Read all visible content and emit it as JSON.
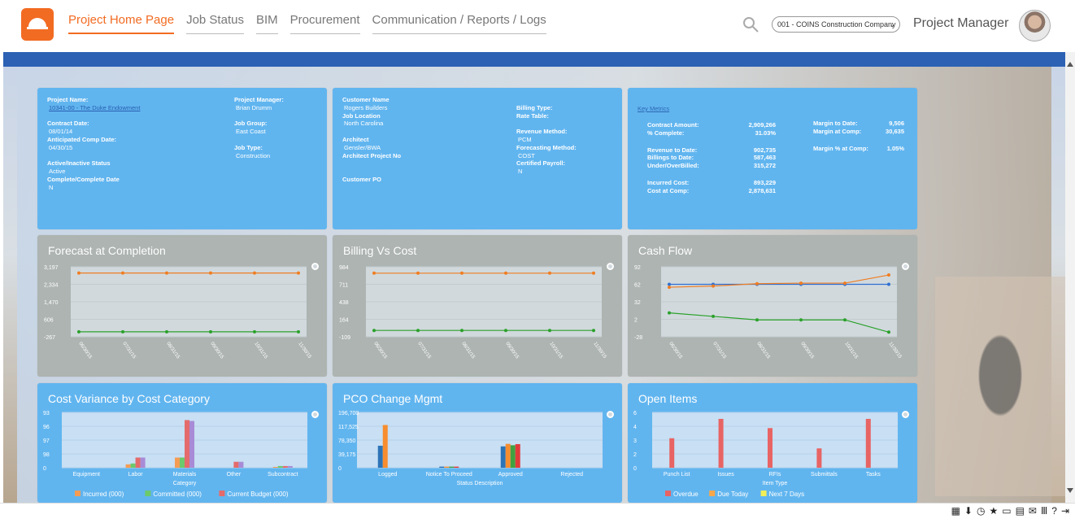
{
  "nav": {
    "items": [
      "Project Home Page",
      "Job Status",
      "BIM",
      "Procurement",
      "Communication / Reports / Logs"
    ],
    "active": "Project Home Page"
  },
  "header": {
    "company": "001 - COINS Construction Company",
    "role": "Project Manager",
    "search_icon": "search-icon",
    "logo_icon": "hardhat-icon",
    "avatar": "avatar"
  },
  "project": {
    "project_name_label": "Project Name:",
    "project_name": "10341-00 - The Duke Endowment",
    "contract_date_label": "Contract Date:",
    "contract_date": "08/01/14",
    "anticipated_label": "Anticipated Comp Date:",
    "anticipated_date": "04/30/15",
    "status_label": "Active/Inactive Status",
    "status": "Active",
    "complete_label": "Complete/Complete Date",
    "complete": "N",
    "pm_label": "Project Manager:",
    "pm": "Brian Drumm",
    "job_group_label": "Job Group:",
    "job_group": "East Coast",
    "job_type_label": "Job Type:",
    "job_type": "Construction"
  },
  "customer": {
    "customer_label": "Customer Name",
    "customer": "Rogers Builders",
    "location_label": "Job Location",
    "location": "North Carolina",
    "architect_label": "Architect",
    "architect": "Gensler/BWA",
    "architect_project_label": "Architect Project No",
    "customer_po_label": "Customer PO",
    "billing_type_label": "Billing Type:",
    "rate_table_label": "Rate Table:",
    "revenue_label": "Revenue Method:",
    "revenue": "PCM",
    "forecasting_label": "Forecasting Method:",
    "forecasting": "COST",
    "certified_label": "Certified Payroll:",
    "certified": "N"
  },
  "metrics": {
    "title": "Key Metrics",
    "left": [
      {
        "label": "Contract Amount:",
        "value": "2,909,266"
      },
      {
        "label": "% Complete:",
        "value": "31.03%"
      },
      {
        "label": "Revenue to Date:",
        "value": "902,735"
      },
      {
        "label": "Billings to Date:",
        "value": "587,463"
      },
      {
        "label": "Under/OverBilled:",
        "value": "315,272"
      },
      {
        "label": "Incurred Cost:",
        "value": "893,229"
      },
      {
        "label": "Cost at Comp:",
        "value": "2,878,631"
      }
    ],
    "right": [
      {
        "label": "Margin to Date:",
        "value": "9,506"
      },
      {
        "label": "Margin at Comp:",
        "value": "30,635"
      },
      {
        "label": "Margin % at Comp:",
        "value": "1.05%"
      }
    ]
  },
  "chart_data": [
    {
      "type": "line",
      "title": "Forecast at Completion",
      "x": [
        "06/30/15",
        "07/31/15",
        "08/31/15",
        "09/30/15",
        "10/31/15",
        "11/30/15"
      ],
      "ylim": [
        -267,
        3197
      ],
      "yticks": [
        "3,197",
        "2,334",
        "1,470",
        "606",
        "-267"
      ],
      "series": [
        {
          "values": [
            2890,
            2890,
            2890,
            2890,
            2890,
            2890
          ],
          "color": "#f07d22"
        },
        {
          "values": [
            -20,
            -20,
            -20,
            -20,
            -20,
            -20
          ],
          "color": "#2aa12a"
        }
      ]
    },
    {
      "type": "line",
      "title": "Billing Vs Cost",
      "x": [
        "06/30/15",
        "07/31/15",
        "08/31/15",
        "09/30/15",
        "10/31/15",
        "11/30/15"
      ],
      "ylim": [
        -109,
        984
      ],
      "yticks": [
        "984",
        "711",
        "438",
        "164",
        "-109"
      ],
      "series": [
        {
          "values": [
            885,
            885,
            885,
            885,
            885,
            885
          ],
          "color": "#f07d22"
        },
        {
          "values": [
            -10,
            -10,
            -10,
            -10,
            -10,
            -10
          ],
          "color": "#2aa12a"
        }
      ]
    },
    {
      "type": "line",
      "title": "Cash Flow",
      "x": [
        "06/30/15",
        "07/31/15",
        "08/31/15",
        "09/30/15",
        "10/31/15",
        "11/30/15"
      ],
      "ylim": [
        -28,
        92
      ],
      "yticks": [
        "92",
        "62",
        "32",
        "2",
        "-28"
      ],
      "series": [
        {
          "values": [
            62,
            62,
            62,
            62,
            62,
            62
          ],
          "color": "#2f6fd2"
        },
        {
          "values": [
            57,
            59,
            63,
            64,
            64,
            78
          ],
          "color": "#f07d22"
        },
        {
          "values": [
            13,
            7,
            1,
            1,
            1,
            -20
          ],
          "color": "#2aa12a"
        }
      ]
    },
    {
      "type": "bar",
      "title": "Cost Variance by Cost Category",
      "categories": [
        "Equipment",
        "Labor",
        "Materials",
        "Other",
        "Subcontract"
      ],
      "xlabel": "Category",
      "ylim": [
        0,
        130
      ],
      "yticks": [
        "93",
        "96",
        "97",
        "98",
        "0"
      ],
      "series": [
        {
          "name": "Incurred (000)",
          "values": [
            0,
            8,
            24,
            0,
            2
          ],
          "color": "#f49c54"
        },
        {
          "name": "Committed (000)",
          "values": [
            0,
            10,
            24,
            0,
            4
          ],
          "color": "#6cc96c"
        },
        {
          "name": "Current Budget (000)",
          "values": [
            0,
            24,
            112,
            14,
            4
          ],
          "color": "#e46b6b"
        },
        {
          "values": [
            0,
            24,
            110,
            14,
            4
          ],
          "color": "#a88bd6"
        }
      ]
    },
    {
      "type": "bar",
      "title": "PCO Change Mgmt",
      "categories": [
        "Logged",
        "Notice To Proceed",
        "Approved",
        "Rejected"
      ],
      "xlabel": "Status Description",
      "ylim": [
        0,
        196700
      ],
      "yticks": [
        "196,700",
        "117,525",
        "78,350",
        "39,175",
        "0"
      ],
      "series": [
        {
          "values": [
            78350,
            4000,
            76000,
            0
          ],
          "color": "#2d74b7"
        },
        {
          "values": [
            152000,
            4000,
            85000,
            0
          ],
          "color": "#f78d2f"
        },
        {
          "values": [
            0,
            4000,
            80000,
            0
          ],
          "color": "#40a140"
        },
        {
          "values": [
            0,
            4000,
            84000,
            0
          ],
          "color": "#e23a3a"
        }
      ]
    },
    {
      "type": "bar",
      "title": "Open Items",
      "categories": [
        "Punch List",
        "Issues",
        "RFIs",
        "Submittals",
        "Tasks"
      ],
      "xlabel": "Item Type",
      "ylim": [
        0,
        6
      ],
      "yticks": [
        "6",
        "4",
        "3",
        "2",
        "0"
      ],
      "series": [
        {
          "name": "Overdue",
          "values": [
            3.2,
            5.3,
            4.3,
            2.1,
            5.3
          ],
          "color": "#e86464"
        },
        {
          "name": "Due Today",
          "values": [
            0,
            0,
            0,
            0,
            0
          ],
          "color": "#f7a74b"
        },
        {
          "name": "Next 7 Days",
          "values": [
            0,
            0,
            0,
            0,
            0
          ],
          "color": "#f2ef57"
        }
      ]
    }
  ]
}
